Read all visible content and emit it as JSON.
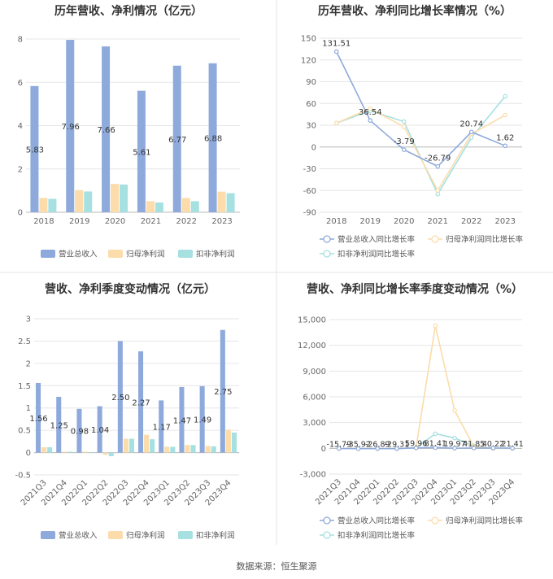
{
  "source_label": "数据来源：恒生聚源",
  "colors": {
    "revenue": "#8eaadc",
    "net_profit": "#fbdcaa",
    "deducted": "#a6e0e1",
    "axis": "#cccccc",
    "grid": "#e6e6e6",
    "divider": "#e5e5e5"
  },
  "chart_data": [
    {
      "id": "c1",
      "type": "bar",
      "title": "历年营收、净利情况（亿元）",
      "categories": [
        "2018",
        "2019",
        "2020",
        "2021",
        "2022",
        "2023"
      ],
      "ylim": [
        0,
        8
      ],
      "yticks": [
        0,
        2,
        4,
        6,
        8
      ],
      "series": [
        {
          "name": "营业总收入",
          "values": [
            5.83,
            7.96,
            7.66,
            5.61,
            6.77,
            6.88
          ],
          "labels": [
            "5.83",
            "7.96",
            "7.66",
            "5.61",
            "6.77",
            "6.88"
          ]
        },
        {
          "name": "归母净利润",
          "values": [
            0.66,
            1.02,
            1.31,
            0.51,
            0.66,
            0.95
          ]
        },
        {
          "name": "扣非净利润",
          "values": [
            0.62,
            0.96,
            1.28,
            0.45,
            0.51,
            0.88
          ]
        }
      ]
    },
    {
      "id": "c2",
      "type": "line",
      "title": "历年营收、净利同比增长率情况（%）",
      "categories": [
        "2018",
        "2019",
        "2020",
        "2021",
        "2022",
        "2023"
      ],
      "ylim": [
        -90,
        150
      ],
      "yticks": [
        -90,
        -60,
        -30,
        0,
        30,
        60,
        90,
        120,
        150
      ],
      "series": [
        {
          "name": "营业总收入同比增长率",
          "values": [
            131.51,
            36.54,
            -3.79,
            -26.79,
            20.74,
            1.62
          ],
          "labels": [
            "131.51",
            "36.54",
            "-3.79",
            "-26.79",
            "20.74",
            "1.62"
          ]
        },
        {
          "name": "归母净利润同比增长率",
          "values": [
            33,
            53,
            28,
            -60,
            18,
            44
          ]
        },
        {
          "name": "扣非净利润同比增长率",
          "values": [
            33,
            50,
            35,
            -65,
            13,
            70
          ]
        }
      ]
    },
    {
      "id": "c3",
      "type": "bar",
      "title": "营收、净利季度变动情况（亿元）",
      "categories": [
        "2021Q3",
        "2021Q4",
        "2022Q1",
        "2022Q2",
        "2022Q3",
        "2022Q4",
        "2023Q1",
        "2023Q2",
        "2023Q3",
        "2023Q4"
      ],
      "ylim": [
        -0.5,
        3
      ],
      "yticks": [
        -0.5,
        0,
        0.5,
        1,
        1.5,
        2,
        2.5,
        3
      ],
      "series": [
        {
          "name": "营业总收入",
          "values": [
            1.56,
            1.25,
            0.98,
            1.04,
            2.5,
            2.27,
            1.17,
            1.47,
            1.49,
            2.75
          ],
          "labels": [
            "1.56",
            "1.25",
            "0.98",
            "1.04",
            "2.50",
            "2.27",
            "1.17",
            "1.47",
            "1.49",
            "2.75"
          ]
        },
        {
          "name": "归母净利润",
          "values": [
            0.12,
            0.02,
            0.02,
            -0.05,
            0.31,
            0.4,
            0.13,
            0.17,
            0.15,
            0.51
          ]
        },
        {
          "name": "扣非净利润",
          "values": [
            0.12,
            0.02,
            0.01,
            -0.08,
            0.31,
            0.3,
            0.13,
            0.17,
            0.14,
            0.45
          ]
        }
      ]
    },
    {
      "id": "c4",
      "type": "line",
      "title": "营收、净利同比增长率季度变动情况（%）",
      "categories": [
        "2021Q3",
        "2021Q4",
        "2022Q1",
        "2022Q2",
        "2022Q3",
        "2022Q4",
        "2023Q1",
        "2023Q2",
        "2023Q3",
        "2023Q4"
      ],
      "ylim": [
        -3000,
        15000
      ],
      "yticks": [
        -3000,
        0,
        3000,
        6000,
        9000,
        12000,
        15000
      ],
      "ytick_labels": [
        "-3,000",
        "0",
        "3,000",
        "6,000",
        "9,000",
        "12,000",
        "15,000"
      ],
      "series": [
        {
          "name": "营业总收入同比增长率",
          "values": [
            -15.79,
            -35.92,
            -26.89,
            -29.31,
            59.96,
            81.41,
            19.97,
            41.85,
            40.22,
            21.41
          ],
          "labels": [
            "-15.79",
            "-35.92",
            "-26.89",
            "-29.31",
            "59.96",
            "81.41",
            "19.97",
            "41.85",
            "40.22",
            "21.41"
          ]
        },
        {
          "name": "归母净利润同比增长率",
          "values": [
            -10,
            -20,
            -30,
            -40,
            100,
            14300,
            4400,
            200,
            0,
            0
          ]
        },
        {
          "name": "扣非净利润同比增长率",
          "values": [
            -10,
            -20,
            -30,
            -40,
            80,
            1700,
            1200,
            300,
            0,
            0
          ]
        }
      ]
    }
  ]
}
